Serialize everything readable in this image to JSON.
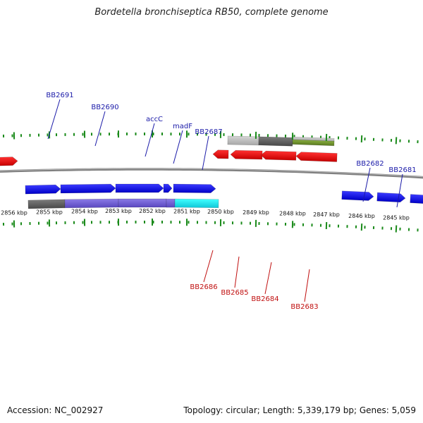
{
  "title": "Bordetella bronchiseptica RB50, complete genome",
  "footer": {
    "accession": "Accession: NC_002927",
    "summary": "Topology: circular; Length: 5,339,179 bp; Genes: 5,059"
  },
  "colors": {
    "forward_label": "#1a1aa8",
    "reverse_label": "#c01010",
    "tick": "#1a8a1a",
    "backbone": "#808080"
  },
  "tick_labels": [
    "2856 kbp",
    "2855 kbp",
    "2854 kbp",
    "2853 kbp",
    "2852 kbp",
    "2851 kbp",
    "2850 kbp",
    "2849 kbp",
    "2848 kbp",
    "2847 kbp",
    "2846 kbp",
    "2845 kbp"
  ],
  "forward_gene_labels": [
    "BB2691",
    "BB2690",
    "accC",
    "madF",
    "BB2687",
    "BB2682",
    "BB2681"
  ],
  "reverse_gene_labels": [
    "BB2686",
    "BB2685",
    "BB2684",
    "BB2683"
  ]
}
